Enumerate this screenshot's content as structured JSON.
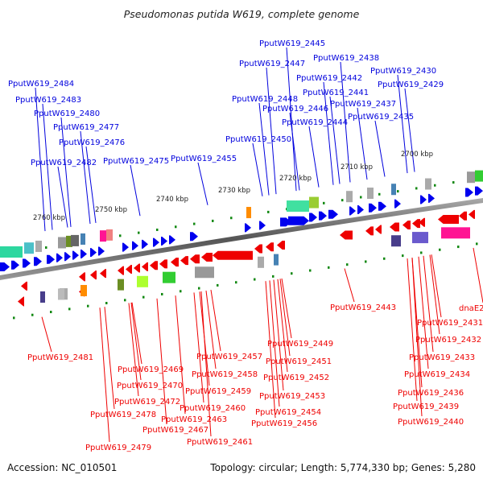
{
  "title": "Pseudomonas putida W619, complete genome",
  "footer": {
    "accession": "Accession: NC_010501",
    "summary": "Topology: circular; Length: 5,774,330 bp; Genes: 5,280"
  },
  "colors": {
    "forward": "#0000ee",
    "reverse": "#ee0000",
    "backbone": "#777777",
    "tick": "#118811",
    "label_forward": "#0000dd",
    "label_reverse": "#ee0000"
  },
  "kbp_ticks": [
    "2700 kbp",
    "2710 kbp",
    "2720 kbp",
    "2730 kbp",
    "2740 kbp",
    "2750 kbp",
    "2760 kbp"
  ],
  "forward_labels": [
    "PputW619_2445",
    "PputW619_2447",
    "PputW619_2438",
    "PputW619_2442",
    "PputW619_2430",
    "PputW619_2429",
    "PputW619_2441",
    "PputW619_2448",
    "PputW619_2437",
    "PputW619_2446",
    "PputW619_2435",
    "PputW619_2444",
    "PputW619_2450",
    "PputW619_2455",
    "PputW619_2484",
    "PputW619_2483",
    "PputW619_2480",
    "PputW619_2477",
    "PputW619_2476",
    "PputW619_2482",
    "PputW619_2475"
  ],
  "reverse_labels": [
    "dnaE2",
    "PputW619_2443",
    "PputW619_2431",
    "PputW619_2432",
    "PputW619_2433",
    "PputW619_2434",
    "PputW619_2436",
    "PputW619_2439",
    "PputW619_2440",
    "PputW619_2449",
    "PputW619_2451",
    "PputW619_2452",
    "PputW619_2453",
    "PputW619_2454",
    "PputW619_2456",
    "PputW619_2457",
    "PputW619_2458",
    "PputW619_2459",
    "PputW619_2460",
    "PputW619_2461",
    "PputW619_2463",
    "PputW619_2467",
    "PputW619_2469",
    "PputW619_2470",
    "PputW619_2472",
    "PputW619_2478",
    "PputW619_2479",
    "PputW619_2481"
  ]
}
